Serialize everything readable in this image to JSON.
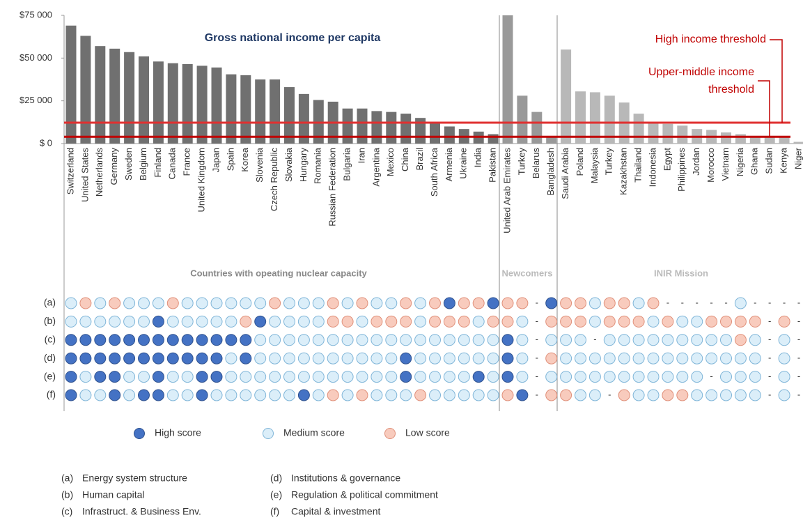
{
  "chart_data": {
    "type": "bar",
    "title": "Gross national income per capita",
    "ylim": [
      0,
      75000
    ],
    "yticks": [
      {
        "value": 0,
        "label": "$ 0"
      },
      {
        "value": 25000,
        "label": "$25 000"
      },
      {
        "value": 50000,
        "label": "$50 000"
      },
      {
        "value": 75000,
        "label": "$75 000"
      }
    ],
    "groups": [
      {
        "name": "Countries with opeating nuclear capacity",
        "color": "#707070",
        "categories": [
          "Switzerland",
          "United States",
          "Netherlands",
          "Germany",
          "Sweden",
          "Belgium",
          "Finland",
          "Canada",
          "France",
          "United Kingdom",
          "Japan",
          "Spain",
          "Korea",
          "Slovenia",
          "Czech Republic",
          "Slovakia",
          "Hungary",
          "Romania",
          "Russian Federation",
          "Bulgaria",
          "Iran",
          "Argentina",
          "Mexico",
          "China",
          "Brazil",
          "South Africa",
          "Armenia",
          "Ukraine",
          "India",
          "Pakistan"
        ],
        "values": [
          69000,
          63000,
          57000,
          55500,
          53500,
          51000,
          48000,
          47000,
          46500,
          45500,
          44500,
          40500,
          40000,
          37500,
          37500,
          33000,
          29000,
          25500,
          24500,
          20500,
          20500,
          19000,
          18500,
          17500,
          15000,
          12500,
          10000,
          8500,
          7000,
          5500
        ]
      },
      {
        "name": "Newcomers",
        "color": "#999999",
        "categories": [
          "United Arab Emirates",
          "Turkey",
          "Belarus",
          "Bangladesh"
        ],
        "values": [
          75000,
          28000,
          18500,
          4500
        ]
      },
      {
        "name": "INIR Mission",
        "color": "#b8b8b8",
        "categories": [
          "Saudi Arabia",
          "Poland",
          "Malaysia",
          "Turkey",
          "Kazakhstan",
          "Thailand",
          "Indonesia",
          "Egypt",
          "Philippines",
          "Jordan",
          "Morocco",
          "Vietnam",
          "Nigeria",
          "Ghana",
          "Sudan",
          "Kenya",
          "Niger"
        ],
        "values": [
          55000,
          30500,
          30000,
          28000,
          24000,
          17500,
          12000,
          11500,
          10500,
          8500,
          8000,
          6500,
          5500,
          4500,
          4000,
          3500,
          1000
        ]
      }
    ],
    "thresholds": [
      {
        "label": [
          "High income threshold"
        ],
        "value": 12235,
        "color": "#e03030"
      },
      {
        "label": [
          "Upper-middle income",
          "threshold"
        ],
        "value": 3955,
        "color": "#c00000"
      }
    ]
  },
  "scores": {
    "legend": [
      {
        "label": "High score",
        "fill": "#4472c4",
        "stroke": "#2f528f"
      },
      {
        "label": "Medium score",
        "fill": "#dbeef9",
        "stroke": "#7fb5d8"
      },
      {
        "label": "Low score",
        "fill": "#f8cbbd",
        "stroke": "#e0907a"
      }
    ],
    "rows": [
      {
        "label": "(a)",
        "values": [
          "Medium score",
          "Low score",
          "Medium score",
          "Low score",
          "Medium score",
          "Medium score",
          "Medium score",
          "Low score",
          "Medium score",
          "Medium score",
          "Medium score",
          "Medium score",
          "Medium score",
          "Medium score",
          "Low score",
          "Medium score",
          "Medium score",
          "Medium score",
          "Low score",
          "Medium score",
          "Low score",
          "Medium score",
          "Medium score",
          "Low score",
          "Medium score",
          "Low score",
          "High score",
          "Low score",
          "Low score",
          "High score",
          "Low score",
          "Low score",
          "-",
          "High score",
          "Low score",
          "Low score",
          "Medium score",
          "Low score",
          "Low score",
          "Medium score",
          "Low score",
          "-",
          "-",
          "-",
          "-",
          "-",
          "Medium score",
          "-",
          "-",
          "-",
          "-"
        ]
      },
      {
        "label": "(b)",
        "values": [
          "Medium score",
          "Medium score",
          "Medium score",
          "Medium score",
          "Medium score",
          "Medium score",
          "High score",
          "Medium score",
          "Medium score",
          "Medium score",
          "Medium score",
          "Medium score",
          "Low score",
          "High score",
          "Medium score",
          "Medium score",
          "Medium score",
          "Medium score",
          "Low score",
          "Low score",
          "Medium score",
          "Low score",
          "Low score",
          "Low score",
          "Medium score",
          "Low score",
          "Low score",
          "Low score",
          "Medium score",
          "Low score",
          "Low score",
          "Medium score",
          "-",
          "Low score",
          "Low score",
          "Low score",
          "Medium score",
          "Low score",
          "Low score",
          "Low score",
          "Medium score",
          "Low score",
          "Medium score",
          "Medium score",
          "Low score",
          "Low score",
          "Low score",
          "Low score",
          "-",
          "Low score",
          "-"
        ]
      },
      {
        "label": "(c)",
        "values": [
          "High score",
          "High score",
          "High score",
          "High score",
          "High score",
          "High score",
          "High score",
          "High score",
          "High score",
          "High score",
          "High score",
          "High score",
          "High score",
          "Medium score",
          "Medium score",
          "Medium score",
          "Medium score",
          "Medium score",
          "Medium score",
          "Medium score",
          "Medium score",
          "Medium score",
          "Medium score",
          "Medium score",
          "Medium score",
          "Medium score",
          "Medium score",
          "Medium score",
          "Medium score",
          "Medium score",
          "High score",
          "Medium score",
          "-",
          "Medium score",
          "Medium score",
          "Medium score",
          "-",
          "Medium score",
          "Medium score",
          "Medium score",
          "Medium score",
          "Medium score",
          "Medium score",
          "Medium score",
          "Medium score",
          "Medium score",
          "Low score",
          "Medium score",
          "-",
          "Medium score",
          "-"
        ]
      },
      {
        "label": "(d)",
        "values": [
          "High score",
          "High score",
          "High score",
          "High score",
          "High score",
          "High score",
          "High score",
          "High score",
          "High score",
          "High score",
          "High score",
          "Medium score",
          "High score",
          "Medium score",
          "Medium score",
          "Medium score",
          "Medium score",
          "Medium score",
          "Medium score",
          "Medium score",
          "Medium score",
          "Medium score",
          "Medium score",
          "High score",
          "Medium score",
          "Medium score",
          "Medium score",
          "Medium score",
          "Medium score",
          "Medium score",
          "High score",
          "Medium score",
          "-",
          "Low score",
          "Medium score",
          "Medium score",
          "Medium score",
          "Medium score",
          "Medium score",
          "Medium score",
          "Medium score",
          "Medium score",
          "Medium score",
          "Medium score",
          "Medium score",
          "Medium score",
          "Medium score",
          "Medium score",
          "-",
          "Medium score",
          "-"
        ]
      },
      {
        "label": "(e)",
        "values": [
          "High score",
          "Medium score",
          "High score",
          "High score",
          "Medium score",
          "Medium score",
          "High score",
          "Medium score",
          "Medium score",
          "High score",
          "High score",
          "Medium score",
          "Medium score",
          "Medium score",
          "Medium score",
          "Medium score",
          "Medium score",
          "Medium score",
          "Medium score",
          "Medium score",
          "Medium score",
          "Medium score",
          "Medium score",
          "High score",
          "Medium score",
          "Medium score",
          "Medium score",
          "Medium score",
          "High score",
          "Medium score",
          "High score",
          "Medium score",
          "-",
          "Medium score",
          "Medium score",
          "Medium score",
          "Medium score",
          "Medium score",
          "Medium score",
          "Medium score",
          "Medium score",
          "Medium score",
          "Medium score",
          "Medium score",
          "-",
          "Medium score",
          "Medium score",
          "Medium score",
          "-",
          "Medium score",
          "-"
        ]
      },
      {
        "label": "(f)",
        "values": [
          "High score",
          "Medium score",
          "Medium score",
          "High score",
          "Medium score",
          "High score",
          "High score",
          "Medium score",
          "Medium score",
          "High score",
          "Medium score",
          "Medium score",
          "Medium score",
          "Medium score",
          "Medium score",
          "Medium score",
          "High score",
          "Medium score",
          "Low score",
          "Medium score",
          "Low score",
          "Medium score",
          "Medium score",
          "Medium score",
          "Low score",
          "Medium score",
          "Medium score",
          "Medium score",
          "Medium score",
          "Medium score",
          "Low score",
          "High score",
          "-",
          "Low score",
          "Low score",
          "Medium score",
          "Medium score",
          "-",
          "Low score",
          "Medium score",
          "Medium score",
          "Low score",
          "Low score",
          "Medium score",
          "Medium score",
          "Medium score",
          "Medium score",
          "Medium score",
          "-",
          "Medium score",
          "-"
        ]
      }
    ]
  },
  "footnotes": [
    {
      "key": "(a)",
      "text": "Energy system structure"
    },
    {
      "key": "(b)",
      "text": "Human capital"
    },
    {
      "key": "(c)",
      "text": "Infrastruct. & Business Env."
    },
    {
      "key": "(d)",
      "text": "Institutions & governance"
    },
    {
      "key": "(e)",
      "text": "Regulation & political commitment"
    },
    {
      "key": "(f)",
      "text": "Capital & investment"
    }
  ]
}
